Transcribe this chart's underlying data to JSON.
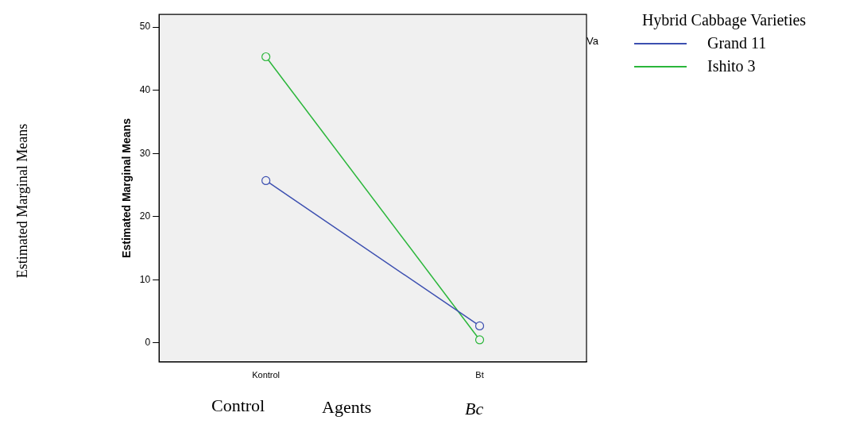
{
  "chart_data": {
    "type": "line",
    "categories": [
      "Kontrol",
      "Bt"
    ],
    "series": [
      {
        "name": "Grand 11",
        "color": "#3c4fb0",
        "values": [
          25.7,
          2.7
        ]
      },
      {
        "name": "Ishito 3",
        "color": "#2ab63a",
        "values": [
          45.3,
          0.5
        ]
      }
    ],
    "ylabel": "Estimated Marginal Means",
    "ylim": [
      -3,
      52
    ],
    "yticks": [
      0,
      10,
      20,
      30,
      40,
      50
    ],
    "legend_title": "Hybrid Cabbage Varieties",
    "legend": "top right",
    "marker": "circle",
    "line_style": "solid",
    "grid": false,
    "annotations": [
      "Va",
      "Estimated Marginal Means",
      "Control",
      "Agents",
      "Bc"
    ]
  }
}
